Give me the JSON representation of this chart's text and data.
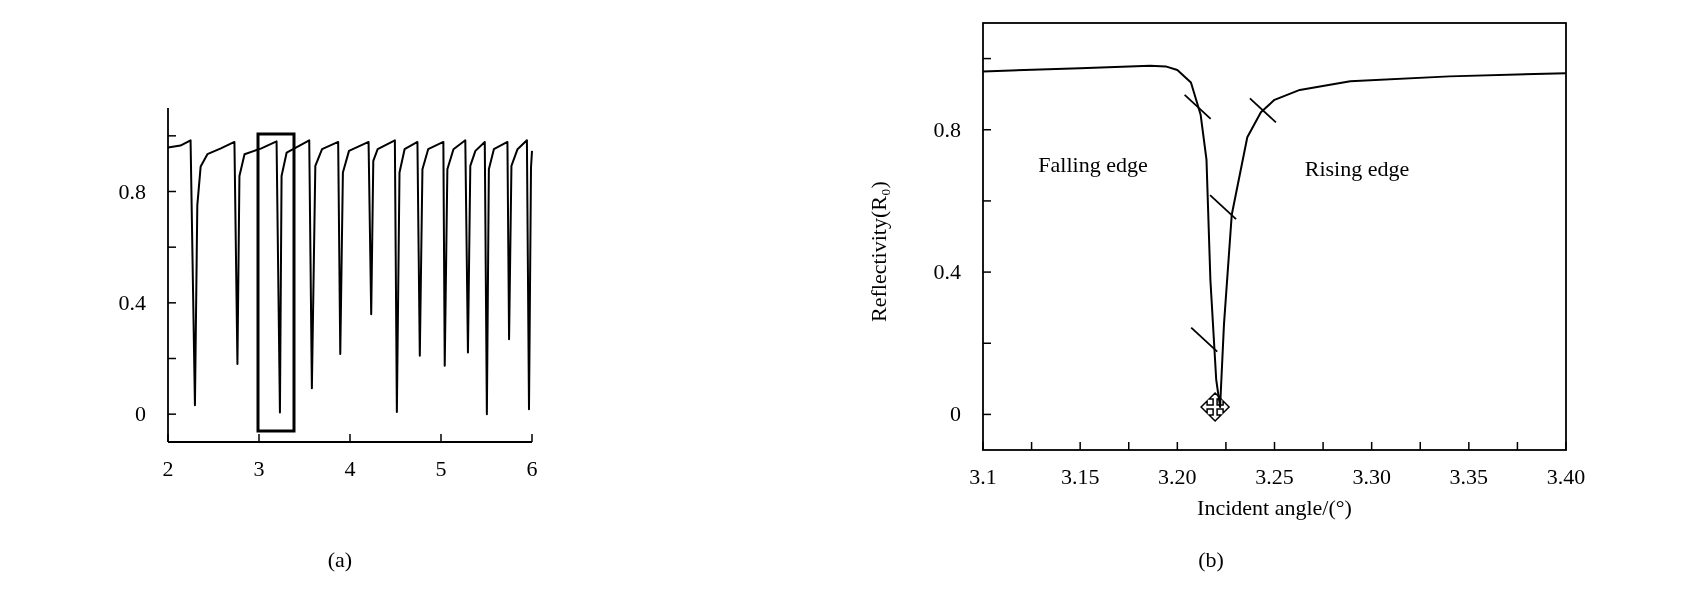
{
  "chart_data": [
    {
      "type": "line",
      "annotations": [
        "(a)"
      ],
      "series": [
        {
          "color": "#000000",
          "x": [
            2.0,
            2.137,
            2.248,
            2.296,
            2.322,
            2.359,
            2.433,
            2.581,
            2.73,
            2.763,
            2.785,
            2.841,
            3.026,
            3.193,
            3.23,
            3.248,
            3.304,
            3.552,
            3.581,
            3.619,
            3.693,
            3.87,
            3.893,
            3.922,
            3.989,
            4.204,
            4.233,
            4.256,
            4.304,
            4.493,
            4.515,
            4.544,
            4.6,
            4.741,
            4.767,
            4.796,
            4.859,
            5.026,
            5.041,
            5.07,
            5.137,
            5.267,
            5.296,
            5.322,
            5.378,
            5.481,
            5.504,
            5.526,
            5.581,
            5.73,
            5.748,
            5.774,
            5.841,
            5.944,
            5.967,
            5.989,
            6.0
          ],
          "values": [
            0.958,
            0.965,
            0.984,
            0.032,
            0.75,
            0.89,
            0.934,
            0.955,
            0.978,
            0.18,
            0.856,
            0.934,
            0.955,
            0.98,
            0.006,
            0.856,
            0.94,
            0.984,
            0.093,
            0.892,
            0.952,
            0.978,
            0.216,
            0.868,
            0.946,
            0.978,
            0.359,
            0.91,
            0.952,
            0.984,
            0.008,
            0.868,
            0.952,
            0.978,
            0.21,
            0.88,
            0.952,
            0.978,
            0.174,
            0.88,
            0.952,
            0.984,
            0.222,
            0.892,
            0.946,
            0.978,
            0.0,
            0.88,
            0.952,
            0.978,
            0.269,
            0.892,
            0.952,
            0.984,
            0.018,
            0.886,
            0.946
          ]
        }
      ],
      "xlim": [
        2,
        6
      ],
      "ylim": [
        -0.1,
        1.1
      ],
      "xticks": [
        2,
        3,
        4,
        5,
        6
      ],
      "yticks": [
        0,
        {
          "value": 0.2,
          "label": null
        },
        0.4,
        {
          "value": 0.6,
          "label": null
        },
        0.8,
        {
          "value": 1.0,
          "label": null
        }
      ]
    },
    {
      "type": "line",
      "xlabel": "Incident angle/(°)",
      "ylabel": "Reflectivity(R₀)",
      "annotations": [
        "Falling edge",
        "Rising edge",
        "(b)"
      ],
      "series": [
        {
          "color": "#000000",
          "x": [
            3.1,
            3.15,
            3.186,
            3.194,
            3.2,
            3.207,
            3.212,
            3.215,
            3.217,
            3.22,
            3.222,
            3.224,
            3.228,
            3.236,
            3.243,
            3.25,
            3.263,
            3.289,
            3.34,
            3.4
          ],
          "values": [
            0.964,
            0.973,
            0.98,
            0.978,
            0.968,
            0.933,
            0.842,
            0.716,
            0.379,
            0.098,
            0.021,
            0.253,
            0.561,
            0.779,
            0.849,
            0.884,
            0.912,
            0.936,
            0.95,
            0.959
          ]
        }
      ],
      "xlim": [
        3.1,
        3.4
      ],
      "ylim": [
        -0.1,
        1.1
      ],
      "xticks": [
        {
          "value": 3.1,
          "label": "3.1"
        },
        {
          "value": 3.125,
          "label": null
        },
        {
          "value": 3.15,
          "label": "3.15"
        },
        {
          "value": 3.175,
          "label": null
        },
        {
          "value": 3.2,
          "label": "3.20"
        },
        {
          "value": 3.225,
          "label": null
        },
        {
          "value": 3.25,
          "label": "3.25"
        },
        {
          "value": 3.275,
          "label": null
        },
        {
          "value": 3.3,
          "label": "3.30"
        },
        {
          "value": 3.325,
          "label": null
        },
        {
          "value": 3.35,
          "label": "3.35"
        },
        {
          "value": 3.375,
          "label": null
        },
        {
          "value": 3.4,
          "label": "3.40"
        }
      ],
      "yticks": [
        0,
        {
          "value": 0.2,
          "label": null
        },
        0.4,
        {
          "value": 0.6,
          "label": null
        },
        0.8,
        {
          "value": 1.0,
          "label": null
        }
      ]
    }
  ]
}
